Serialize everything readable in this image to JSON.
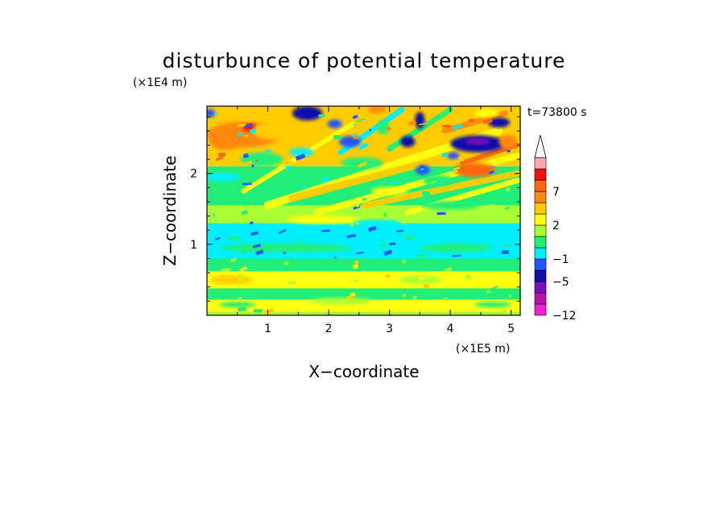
{
  "chart_data": {
    "type": "heatmap",
    "title": "disturbunce of potential temperature",
    "xlabel": "X−coordinate",
    "ylabel": "Z−coordinate",
    "x_unit": "(×1E5 m)",
    "y_unit": "(×1E4 m)",
    "time_label": "t=73800 s",
    "xlim": [
      0,
      5.15
    ],
    "ylim": [
      0,
      2.95
    ],
    "x_ticks": [
      {
        "value": 1,
        "label": "1"
      },
      {
        "value": 2,
        "label": "2"
      },
      {
        "value": 3,
        "label": "3"
      },
      {
        "value": 4,
        "label": "4"
      },
      {
        "value": 5,
        "label": "5"
      }
    ],
    "y_ticks": [
      {
        "value": 1,
        "label": "1"
      },
      {
        "value": 2,
        "label": "2"
      }
    ],
    "colorbar": {
      "labels": [
        {
          "value": 7,
          "label": "7"
        },
        {
          "value": 2,
          "label": "2"
        },
        {
          "value": -1,
          "label": "−1"
        },
        {
          "value": -5,
          "label": "−5"
        },
        {
          "value": -12,
          "label": "−12"
        }
      ],
      "levels_bottom_to_top": [
        -12,
        -9.5,
        -7,
        -5,
        -3,
        -1,
        0,
        1,
        2,
        3,
        5,
        7,
        9,
        11
      ],
      "colors_bottom_to_top": [
        "#ee22cc",
        "#bb11aa",
        "#7711bb",
        "#1111aa",
        "#2255ff",
        "#00eeff",
        "#22ee77",
        "#aaff33",
        "#ffff11",
        "#ffcc00",
        "#ff8811",
        "#ff6611",
        "#ee1111",
        "#ffaaaa"
      ],
      "extend_top_color": "#ffffff"
    },
    "field_description_bands": [
      {
        "z_range": [
          0,
          0.05
        ],
        "dominant_value": 1
      },
      {
        "z_range": [
          0.05,
          0.22
        ],
        "dominant_value": 2
      },
      {
        "z_range": [
          0.22,
          0.38
        ],
        "dominant_value": 0
      },
      {
        "z_range": [
          0.38,
          0.62
        ],
        "dominant_value": 2
      },
      {
        "z_range": [
          0.62,
          0.8
        ],
        "dominant_value": 0.5
      },
      {
        "z_range": [
          0.8,
          1.3
        ],
        "dominant_value": -0.5
      },
      {
        "z_range": [
          1.3,
          1.55
        ],
        "dominant_value": 1.5
      },
      {
        "z_range": [
          1.55,
          2.1
        ],
        "dominant_value": 0.5
      },
      {
        "z_range": [
          2.1,
          2.95
        ],
        "dominant_value": 4
      }
    ]
  }
}
